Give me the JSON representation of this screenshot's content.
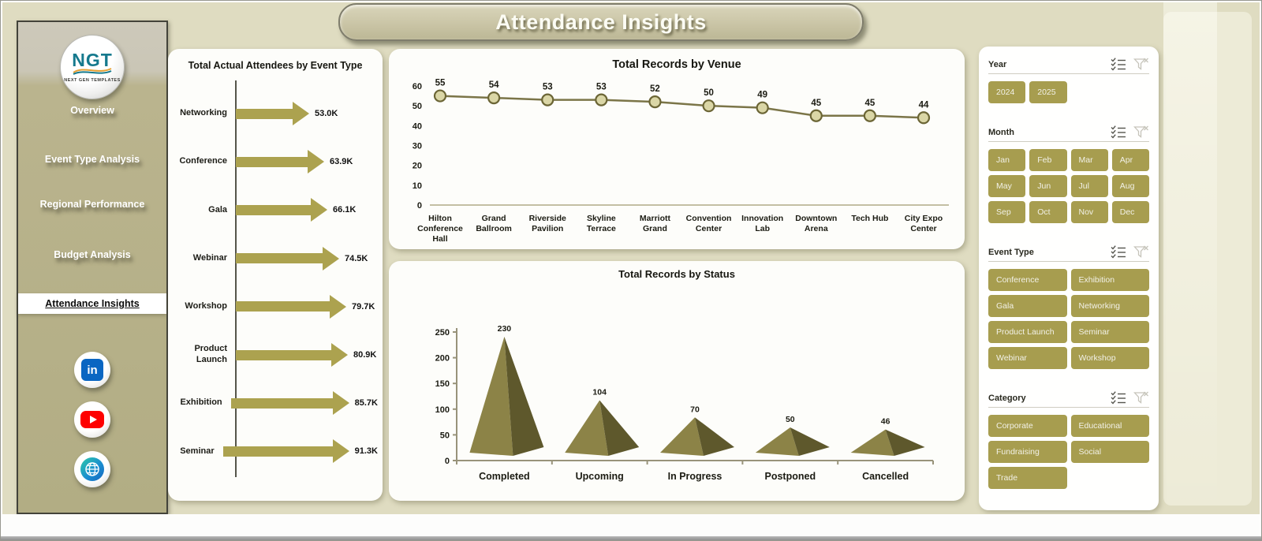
{
  "header": {
    "title": "Attendance Insights"
  },
  "sidebar": {
    "logo": {
      "text": "NGT",
      "subtext": "NEXT GEN TEMPLATES"
    },
    "items": [
      {
        "label": "Overview",
        "active": false
      },
      {
        "label": "Event Type Analysis",
        "active": false
      },
      {
        "label": "Regional Performance",
        "active": false
      },
      {
        "label": "Budget Analysis",
        "active": false
      },
      {
        "label": "Attendance Insights",
        "active": true
      }
    ],
    "social": [
      "linkedin",
      "youtube",
      "website"
    ]
  },
  "chart_data": [
    {
      "type": "bar",
      "title": "Total Actual Attendees by Event Type",
      "orientation": "horizontal-arrows",
      "categories": [
        "Networking",
        "Conference",
        "Gala",
        "Webinar",
        "Workshop",
        "Product Launch",
        "Exhibition",
        "Seminar"
      ],
      "values": [
        53000,
        63900,
        66100,
        74500,
        79700,
        80900,
        85700,
        91300
      ],
      "labels": [
        "53.0K",
        "63.9K",
        "66.1K",
        "74.5K",
        "79.7K",
        "80.9K",
        "85.7K",
        "91.3K"
      ],
      "bar_color": "#aca24f"
    },
    {
      "type": "line",
      "title": "Total Records by Venue",
      "categories": [
        "Hilton Conference Hall",
        "Grand Ballroom",
        "Riverside Pavilion",
        "Skyline Terrace",
        "Marriott Grand",
        "Convention Center",
        "Innovation Lab",
        "Downtown Arena",
        "Tech Hub",
        "City Expo Center"
      ],
      "values": [
        55,
        54,
        53,
        53,
        52,
        50,
        49,
        45,
        45,
        44
      ],
      "ylim": [
        0,
        60
      ],
      "ytick_step": 10,
      "grid": false,
      "line_color": "#7b7548",
      "marker_fill": "#dad6a6",
      "marker_stroke": "#6b6535"
    },
    {
      "type": "pyramid",
      "title": "Total Records by Status",
      "categories": [
        "Completed",
        "Upcoming",
        "In Progress",
        "Postponed",
        "Cancelled"
      ],
      "values": [
        230,
        104,
        70,
        50,
        46
      ],
      "ylim": [
        0,
        250
      ],
      "ytick_step": 50,
      "face_light": "#8c8347",
      "face_dark": "#5e582c"
    }
  ],
  "slicers": [
    {
      "title": "Year",
      "columns": 4,
      "options": [
        "2024",
        "2025"
      ]
    },
    {
      "title": "Month",
      "columns": 4,
      "options": [
        "Jan",
        "Feb",
        "Mar",
        "Apr",
        "May",
        "Jun",
        "Jul",
        "Aug",
        "Sep",
        "Oct",
        "Nov",
        "Dec"
      ]
    },
    {
      "title": "Event Type",
      "columns": 2,
      "options": [
        "Conference",
        "Exhibition",
        "Gala",
        "Networking",
        "Product Launch",
        "Seminar",
        "Webinar",
        "Workshop"
      ]
    },
    {
      "title": "Category",
      "columns": 2,
      "options": [
        "Corporate",
        "Educational",
        "Fundraising",
        "Social",
        "Trade"
      ]
    }
  ],
  "colors": {
    "background": "#dfdcc1",
    "accent_olive": "#a79d4f",
    "card": "#fdfdfa",
    "sidebar_dark_border": "#43433a",
    "linkedin": "#0a66c2",
    "youtube": "#fe0000"
  }
}
